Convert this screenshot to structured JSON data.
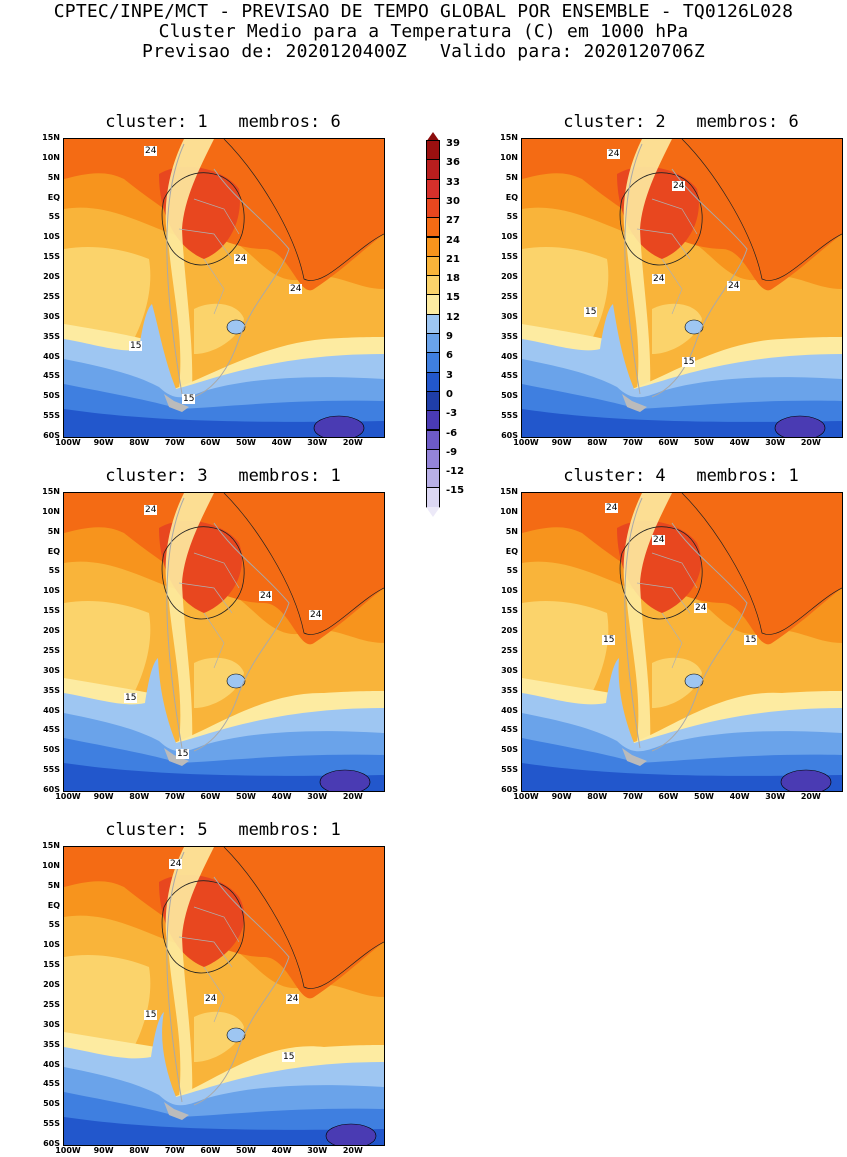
{
  "header": {
    "line1": "CPTEC/INPE/MCT - PREVISAO DE TEMPO GLOBAL POR ENSEMBLE - TQ0126L028",
    "line2": "Cluster Medio para a Temperatura (C) em 1000 hPa",
    "line3": "Previsao de: 2020120400Z   Valido para: 2020120706Z"
  },
  "lat_labels": [
    "15N",
    "10N",
    "5N",
    "EQ",
    "5S",
    "10S",
    "15S",
    "20S",
    "25S",
    "30S",
    "35S",
    "40S",
    "45S",
    "50S",
    "55S",
    "60S"
  ],
  "lon_labels": [
    "100W",
    "90W",
    "80W",
    "70W",
    "60W",
    "50W",
    "40W",
    "30W",
    "20W"
  ],
  "panels": [
    {
      "title": "cluster: 1   membros: 6",
      "labels": [
        "24",
        "24",
        "24",
        "15",
        "15"
      ]
    },
    {
      "title": "cluster: 2   membros: 6",
      "labels": [
        "24",
        "24",
        "24",
        "24",
        "15",
        "15"
      ]
    },
    {
      "title": "cluster: 3   membros: 1",
      "labels": [
        "24",
        "24",
        "24",
        "15",
        "15"
      ]
    },
    {
      "title": "cluster: 4   membros: 1",
      "labels": [
        "24",
        "24",
        "24",
        "15",
        "15"
      ]
    },
    {
      "title": "cluster: 5   membros: 1",
      "labels": [
        "24",
        "24",
        "24",
        "15",
        "15"
      ]
    }
  ],
  "colorbar": {
    "values": [
      "39",
      "36",
      "33",
      "30",
      "27",
      "24",
      "21",
      "18",
      "15",
      "12",
      "9",
      "6",
      "3",
      "0",
      "-3",
      "-6",
      "-9",
      "-12",
      "-15"
    ],
    "colors": [
      "#9b1010",
      "#b81e1e",
      "#d6302b",
      "#e8471f",
      "#f46b14",
      "#f7941d",
      "#f9b43a",
      "#fbd36b",
      "#fdeba1",
      "#9ec6f2",
      "#6aa3ea",
      "#3f7fe0",
      "#2257cc",
      "#1f3ea8",
      "#4a3bb3",
      "#6d5bc6",
      "#9384d8",
      "#b8afe6",
      "#dcd7f3"
    ],
    "top_arrow_color": "#8b0d0d",
    "bottom_arrow_color": "#ece9f8"
  }
}
